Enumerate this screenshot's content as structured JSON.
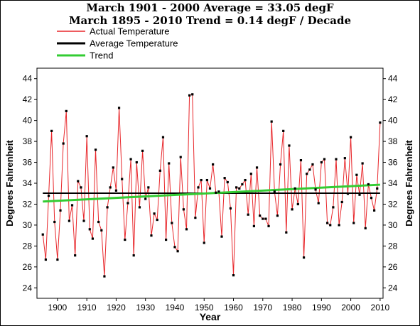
{
  "chart_data": {
    "type": "line",
    "title": "March 1901 - 2000 Average = 33.05 degF",
    "subtitle": "March 1895 - 2010 Trend = 0.14 degF / Decade",
    "xlabel": "Year",
    "ylabel": "Degrees Fahrenheit",
    "xlim": [
      1893,
      2011
    ],
    "ylim": [
      23,
      45
    ],
    "x_ticks": [
      1900,
      1910,
      1920,
      1930,
      1940,
      1950,
      1960,
      1970,
      1980,
      1990,
      2000,
      2010
    ],
    "y_ticks": [
      24,
      26,
      28,
      30,
      32,
      34,
      36,
      38,
      40,
      42,
      44
    ],
    "grid": false,
    "legend_position": "top-left",
    "series": [
      {
        "name": "Actual Temperature",
        "color": "#e8262a",
        "x": [
          1895,
          1896,
          1897,
          1898,
          1899,
          1900,
          1901,
          1902,
          1903,
          1904,
          1905,
          1906,
          1907,
          1908,
          1909,
          1910,
          1911,
          1912,
          1913,
          1914,
          1915,
          1916,
          1917,
          1918,
          1919,
          1920,
          1921,
          1922,
          1923,
          1924,
          1925,
          1926,
          1927,
          1928,
          1929,
          1930,
          1931,
          1932,
          1933,
          1934,
          1935,
          1936,
          1937,
          1938,
          1939,
          1940,
          1941,
          1942,
          1943,
          1944,
          1945,
          1946,
          1947,
          1948,
          1949,
          1950,
          1951,
          1952,
          1953,
          1954,
          1955,
          1956,
          1957,
          1958,
          1959,
          1960,
          1961,
          1962,
          1963,
          1964,
          1965,
          1966,
          1967,
          1968,
          1969,
          1970,
          1971,
          1972,
          1973,
          1974,
          1975,
          1976,
          1977,
          1978,
          1979,
          1980,
          1981,
          1982,
          1983,
          1984,
          1985,
          1986,
          1987,
          1988,
          1989,
          1990,
          1991,
          1992,
          1993,
          1994,
          1995,
          1996,
          1997,
          1998,
          1999,
          2000,
          2001,
          2002,
          2003,
          2004,
          2005,
          2006,
          2007,
          2008,
          2009,
          2010
        ],
        "values": [
          29.1,
          26.7,
          32.8,
          39.0,
          30.3,
          26.7,
          31.4,
          37.8,
          40.9,
          30.4,
          31.9,
          27.1,
          34.2,
          33.6,
          30.4,
          38.5,
          29.6,
          28.7,
          37.2,
          30.3,
          29.5,
          25.1,
          31.7,
          33.6,
          35.5,
          33.3,
          41.2,
          34.4,
          28.6,
          32.1,
          36.3,
          27.1,
          36.0,
          31.7,
          37.1,
          32.5,
          33.6,
          29.0,
          31.1,
          30.5,
          35.2,
          38.4,
          28.6,
          35.9,
          30.2,
          27.9,
          27.5,
          36.5,
          31.5,
          29.6,
          42.4,
          42.5,
          30.7,
          33.6,
          34.3,
          28.3,
          34.3,
          33.5,
          35.8,
          33.1,
          33.2,
          28.9,
          34.5,
          34.1,
          31.6,
          25.2,
          33.6,
          33.5,
          33.9,
          34.3,
          31.0,
          34.9,
          29.9,
          35.5,
          30.9,
          30.6,
          30.6,
          29.9,
          39.9,
          33.2,
          30.9,
          35.8,
          39.0,
          29.3,
          37.6,
          31.5,
          33.5,
          32.0,
          36.2,
          26.9,
          34.9,
          35.3,
          35.8,
          33.4,
          32.1,
          36.0,
          36.3,
          30.2,
          30.0,
          31.7,
          36.3,
          30.0,
          32.2,
          36.4,
          33.0,
          38.4,
          30.2,
          34.8,
          32.9,
          35.9,
          29.7,
          33.9,
          32.6,
          31.4,
          33.5,
          39.8
        ]
      },
      {
        "name": "Average Temperature",
        "color": "#000000",
        "x": [
          1895,
          2010
        ],
        "values": [
          33.05,
          33.05
        ]
      },
      {
        "name": "Trend",
        "color": "#33cc33",
        "x": [
          1895,
          2010
        ],
        "values": [
          32.25,
          33.86
        ]
      }
    ]
  }
}
